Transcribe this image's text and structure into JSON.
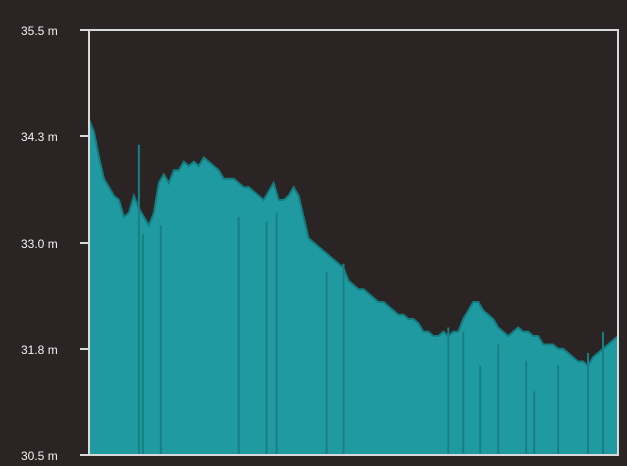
{
  "colors": {
    "background": "#2a2425",
    "plot_background": "#2b2628",
    "fill": "#1e9aa0",
    "frame": "#d9d9d9",
    "text": "#f2f2f2"
  },
  "chart_data": {
    "type": "area",
    "title": "",
    "xlabel": "",
    "ylabel": "",
    "ylim": [
      30.5,
      35.5
    ],
    "yticks": [
      "35.5 m",
      "34.3 m",
      "33.0 m",
      "31.8 m",
      "30.5 m"
    ],
    "grid": false,
    "series": [
      {
        "x": [
          0,
          5,
          10,
          15,
          20,
          25,
          30,
          35,
          40,
          45,
          50,
          55,
          60,
          65,
          70,
          75,
          80,
          85,
          90,
          95,
          100,
          105,
          110,
          115,
          120,
          125,
          130,
          135,
          140,
          145,
          150,
          155,
          160,
          165,
          170,
          175,
          180,
          185,
          190,
          195,
          200,
          205,
          210,
          215,
          220,
          225,
          230,
          235,
          240,
          245,
          250,
          255,
          260,
          265,
          270,
          275,
          280,
          285,
          290,
          295,
          300,
          305,
          310,
          315,
          320,
          325,
          330,
          335,
          340,
          345,
          350,
          355,
          360,
          365,
          370,
          375,
          380,
          385,
          390,
          395,
          400,
          405,
          410,
          415,
          420,
          425,
          430,
          435,
          440,
          445,
          450,
          455,
          460,
          465,
          470,
          475,
          480,
          485,
          490,
          495,
          500,
          505,
          510,
          515,
          520,
          525,
          530
        ],
        "values": [
          34.45,
          34.3,
          34.0,
          33.75,
          33.65,
          33.55,
          33.5,
          33.3,
          33.35,
          33.55,
          33.4,
          33.3,
          33.2,
          33.35,
          33.7,
          33.8,
          33.7,
          33.85,
          33.85,
          33.95,
          33.9,
          33.95,
          33.9,
          34.0,
          33.95,
          33.9,
          33.85,
          33.75,
          33.75,
          33.75,
          33.7,
          33.65,
          33.65,
          33.6,
          33.55,
          33.5,
          33.6,
          33.7,
          33.5,
          33.5,
          33.55,
          33.65,
          33.55,
          33.3,
          33.05,
          33.0,
          32.95,
          32.9,
          32.85,
          32.8,
          32.75,
          32.7,
          32.55,
          32.5,
          32.45,
          32.45,
          32.4,
          32.35,
          32.3,
          32.3,
          32.25,
          32.2,
          32.15,
          32.15,
          32.1,
          32.1,
          32.05,
          31.95,
          31.95,
          31.9,
          31.9,
          31.95,
          31.9,
          31.95,
          31.95,
          32.1,
          32.2,
          32.3,
          32.3,
          32.2,
          32.15,
          32.1,
          32.0,
          31.95,
          31.9,
          31.95,
          32.0,
          31.95,
          31.95,
          31.9,
          31.9,
          31.8,
          31.8,
          31.8,
          31.75,
          31.75,
          31.7,
          31.65,
          31.6,
          31.6,
          31.55,
          31.65,
          31.7,
          31.75,
          31.8,
          31.85,
          31.9
        ]
      }
    ],
    "spikes": [
      {
        "x": 50,
        "value": 34.15
      },
      {
        "x": 54,
        "value": 33.1
      },
      {
        "x": 72,
        "value": 33.2
      },
      {
        "x": 150,
        "value": 33.3
      },
      {
        "x": 178,
        "value": 33.25
      },
      {
        "x": 188,
        "value": 33.35
      },
      {
        "x": 238,
        "value": 32.65
      },
      {
        "x": 255,
        "value": 32.75
      },
      {
        "x": 360,
        "value": 32.0
      },
      {
        "x": 375,
        "value": 31.95
      },
      {
        "x": 392,
        "value": 31.55
      },
      {
        "x": 410,
        "value": 31.8
      },
      {
        "x": 438,
        "value": 31.6
      },
      {
        "x": 446,
        "value": 31.25
      },
      {
        "x": 470,
        "value": 31.55
      },
      {
        "x": 500,
        "value": 31.7
      },
      {
        "x": 515,
        "value": 31.95
      }
    ]
  }
}
